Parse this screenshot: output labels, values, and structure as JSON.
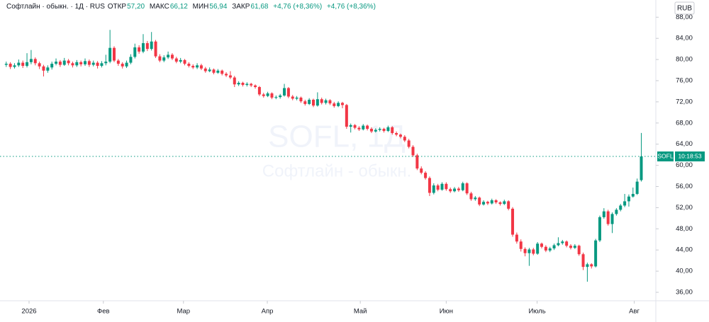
{
  "header": {
    "symbol": "Софтлайн · обыкн. · 1Д · RUS",
    "open_label": "ОТКР",
    "open": "57,20",
    "high_label": "МАКС",
    "high": "66,12",
    "low_label": "МИН",
    "low": "56,94",
    "close_label": "ЗАКР",
    "close": "61,68",
    "change": "+4,76 (+8,36%)",
    "change_2": "+4,76 (+8,36%)",
    "currency": "RUB"
  },
  "watermark": {
    "ticker": "SOFL, 1Д",
    "name": "Софтлайн - обыкн."
  },
  "price_tag": {
    "ticker": "SOFL",
    "time": "10:18:53"
  },
  "chart_data": {
    "type": "candlestick",
    "up_color": "#089981",
    "down_color": "#f23645",
    "grid": false,
    "xlim": [
      -1.5,
      156.5
    ],
    "ylim": [
      34.4,
      91.25
    ],
    "xticks": [
      {
        "value": 5.5,
        "label": "2026"
      },
      {
        "value": 23.4,
        "label": "Фев"
      },
      {
        "value": 42.7,
        "label": "Мар"
      },
      {
        "value": 62.9,
        "label": "Апр"
      },
      {
        "value": 85.3,
        "label": "Май"
      },
      {
        "value": 106,
        "label": "Июн"
      },
      {
        "value": 127.9,
        "label": "Июль"
      },
      {
        "value": 151.3,
        "label": "Авг"
      }
    ],
    "yticks": [
      {
        "value": 36,
        "label": "36,00"
      },
      {
        "value": 40,
        "label": "40,00"
      },
      {
        "value": 44,
        "label": "44,00"
      },
      {
        "value": 48,
        "label": "48,00"
      },
      {
        "value": 52,
        "label": "52,00"
      },
      {
        "value": 56,
        "label": "56,00"
      },
      {
        "value": 60,
        "label": "60,00"
      },
      {
        "value": 64,
        "label": "64,00"
      },
      {
        "value": 68,
        "label": "68,00"
      },
      {
        "value": 72,
        "label": "72,00"
      },
      {
        "value": 76,
        "label": "76,00"
      },
      {
        "value": 80,
        "label": "80,00"
      },
      {
        "value": 84,
        "label": "84,00"
      },
      {
        "value": 88,
        "label": "88,00"
      }
    ],
    "ohlc": [
      [
        79.0,
        79.6,
        78.6,
        79.2
      ],
      [
        79.2,
        79.5,
        78.2,
        78.6
      ],
      [
        78.6,
        79.3,
        78.3,
        78.9
      ],
      [
        78.9,
        80.0,
        78.6,
        79.4
      ],
      [
        79.4,
        79.8,
        78.4,
        78.8
      ],
      [
        78.8,
        81.2,
        78.5,
        79.5
      ],
      [
        79.5,
        81.8,
        79.1,
        80.1
      ],
      [
        80.1,
        80.4,
        78.9,
        79.3
      ],
      [
        79.3,
        79.6,
        78.2,
        78.7
      ],
      [
        78.7,
        79.0,
        76.8,
        77.9
      ],
      [
        77.9,
        78.9,
        77.5,
        78.5
      ],
      [
        78.5,
        79.6,
        78.1,
        79.2
      ],
      [
        79.2,
        80.2,
        78.9,
        79.6
      ],
      [
        79.6,
        79.9,
        78.6,
        79.0
      ],
      [
        79.0,
        80.3,
        78.8,
        79.8
      ],
      [
        79.8,
        80.1,
        78.9,
        79.3
      ],
      [
        79.3,
        79.6,
        78.5,
        78.9
      ],
      [
        78.9,
        79.9,
        78.6,
        79.5
      ],
      [
        79.5,
        79.8,
        78.7,
        79.1
      ],
      [
        79.1,
        80.2,
        78.8,
        79.7
      ],
      [
        79.7,
        80.0,
        78.6,
        79.0
      ],
      [
        79.0,
        79.8,
        78.7,
        79.4
      ],
      [
        79.4,
        79.7,
        78.3,
        78.8
      ],
      [
        78.8,
        79.7,
        78.5,
        79.3
      ],
      [
        79.3,
        80.9,
        78.9,
        79.6
      ],
      [
        79.6,
        85.6,
        79.3,
        82.2
      ],
      [
        82.2,
        82.5,
        79.5,
        79.8
      ],
      [
        79.8,
        80.1,
        78.8,
        79.2
      ],
      [
        79.2,
        79.5,
        78.3,
        78.7
      ],
      [
        78.7,
        79.8,
        78.4,
        79.4
      ],
      [
        79.4,
        81.0,
        79.1,
        80.5
      ],
      [
        80.5,
        83.0,
        80.2,
        82.3
      ],
      [
        82.3,
        82.7,
        81.1,
        81.5
      ],
      [
        81.5,
        84.8,
        81.2,
        83.1
      ],
      [
        83.1,
        83.5,
        81.6,
        82.0
      ],
      [
        82.0,
        85.2,
        81.7,
        83.4
      ],
      [
        83.4,
        83.7,
        80.3,
        80.6
      ],
      [
        80.6,
        81.0,
        79.5,
        79.8
      ],
      [
        79.8,
        80.8,
        79.5,
        80.4
      ],
      [
        80.4,
        81.5,
        80.1,
        80.9
      ],
      [
        80.9,
        81.2,
        79.9,
        80.2
      ],
      [
        80.2,
        80.5,
        79.3,
        79.6
      ],
      [
        79.6,
        80.3,
        79.3,
        79.9
      ],
      [
        79.9,
        80.1,
        78.9,
        79.2
      ],
      [
        79.2,
        79.5,
        78.5,
        78.8
      ],
      [
        78.8,
        79.1,
        78.2,
        78.5
      ],
      [
        78.5,
        79.3,
        78.2,
        78.9
      ],
      [
        78.9,
        79.2,
        78.0,
        78.3
      ],
      [
        78.3,
        78.6,
        77.5,
        77.8
      ],
      [
        77.8,
        78.5,
        77.6,
        78.1
      ],
      [
        78.1,
        78.3,
        77.2,
        77.5
      ],
      [
        77.5,
        78.2,
        77.3,
        77.9
      ],
      [
        77.9,
        78.1,
        77.0,
        77.3
      ],
      [
        77.3,
        77.6,
        76.7,
        77.0
      ],
      [
        77.0,
        77.8,
        76.3,
        76.6
      ],
      [
        76.6,
        76.9,
        74.8,
        75.3
      ],
      [
        75.3,
        75.9,
        75.0,
        75.6
      ],
      [
        75.6,
        75.8,
        74.9,
        75.2
      ],
      [
        75.2,
        75.7,
        74.9,
        75.4
      ],
      [
        75.4,
        75.6,
        74.8,
        75.1
      ],
      [
        75.1,
        75.3,
        74.5,
        74.8
      ],
      [
        74.8,
        75.0,
        73.1,
        73.4
      ],
      [
        73.4,
        73.7,
        72.8,
        73.1
      ],
      [
        73.1,
        73.9,
        72.9,
        73.6
      ],
      [
        73.6,
        73.8,
        72.5,
        72.8
      ],
      [
        72.8,
        73.2,
        72.5,
        72.9
      ],
      [
        72.9,
        73.5,
        72.6,
        73.2
      ],
      [
        73.2,
        75.4,
        73.0,
        74.6
      ],
      [
        74.6,
        74.8,
        72.7,
        73.0
      ],
      [
        73.0,
        73.3,
        72.3,
        72.6
      ],
      [
        72.6,
        73.1,
        72.3,
        72.8
      ],
      [
        72.8,
        73.0,
        71.8,
        72.1
      ],
      [
        72.1,
        72.4,
        71.3,
        71.6
      ],
      [
        71.6,
        72.7,
        71.4,
        72.4
      ],
      [
        72.4,
        72.6,
        71.0,
        71.3
      ],
      [
        71.3,
        73.8,
        71.1,
        72.5
      ],
      [
        72.5,
        72.8,
        71.5,
        71.8
      ],
      [
        71.8,
        72.6,
        71.5,
        72.3
      ],
      [
        72.3,
        72.5,
        71.4,
        71.7
      ],
      [
        71.7,
        72.0,
        70.9,
        71.2
      ],
      [
        71.2,
        72.1,
        71.0,
        71.8
      ],
      [
        71.8,
        72.0,
        70.8,
        71.4
      ],
      [
        71.4,
        71.6,
        66.9,
        67.3
      ],
      [
        67.3,
        67.9,
        66.2,
        67.6
      ],
      [
        67.6,
        67.8,
        66.8,
        67.1
      ],
      [
        67.1,
        67.4,
        66.5,
        66.8
      ],
      [
        66.8,
        67.8,
        66.6,
        67.5
      ],
      [
        67.5,
        67.7,
        66.6,
        66.9
      ],
      [
        66.9,
        67.2,
        66.1,
        66.4
      ],
      [
        66.4,
        67.0,
        66.2,
        66.7
      ],
      [
        66.7,
        67.2,
        66.4,
        66.9
      ],
      [
        66.9,
        67.1,
        66.2,
        66.5
      ],
      [
        66.5,
        67.5,
        66.3,
        67.2
      ],
      [
        67.2,
        67.4,
        65.8,
        66.1
      ],
      [
        66.1,
        66.4,
        65.5,
        65.8
      ],
      [
        65.8,
        66.0,
        65.1,
        65.4
      ],
      [
        65.4,
        65.7,
        64.4,
        64.7
      ],
      [
        64.7,
        65.0,
        63.2,
        63.5
      ],
      [
        63.5,
        63.8,
        61.6,
        61.9
      ],
      [
        61.9,
        62.2,
        59.1,
        59.4
      ],
      [
        59.4,
        59.8,
        58.3,
        58.6
      ],
      [
        58.6,
        58.9,
        57.3,
        57.6
      ],
      [
        57.6,
        57.9,
        54.2,
        54.8
      ],
      [
        54.8,
        56.6,
        54.5,
        56.2
      ],
      [
        56.2,
        56.5,
        55.1,
        55.4
      ],
      [
        55.4,
        56.8,
        55.2,
        56.5
      ],
      [
        56.5,
        56.8,
        55.2,
        55.5
      ],
      [
        55.5,
        55.8,
        54.8,
        55.1
      ],
      [
        55.1,
        55.9,
        54.9,
        55.6
      ],
      [
        55.6,
        55.9,
        55.0,
        55.3
      ],
      [
        55.3,
        56.9,
        55.1,
        56.6
      ],
      [
        56.6,
        56.8,
        54.4,
        54.7
      ],
      [
        54.7,
        55.0,
        53.3,
        53.6
      ],
      [
        53.6,
        54.2,
        53.3,
        53.9
      ],
      [
        53.9,
        54.1,
        52.3,
        52.6
      ],
      [
        52.6,
        53.4,
        52.4,
        53.1
      ],
      [
        53.1,
        53.3,
        52.5,
        52.8
      ],
      [
        52.8,
        53.7,
        52.6,
        53.4
      ],
      [
        53.4,
        53.6,
        52.7,
        53.0
      ],
      [
        53.0,
        53.2,
        52.4,
        52.7
      ],
      [
        52.7,
        53.5,
        52.5,
        53.2
      ],
      [
        53.2,
        53.4,
        51.5,
        51.8
      ],
      [
        51.8,
        52.1,
        46.5,
        46.9
      ],
      [
        46.9,
        47.3,
        45.2,
        45.6
      ],
      [
        45.6,
        46.0,
        43.7,
        44.2
      ],
      [
        44.2,
        44.5,
        42.8,
        43.4
      ],
      [
        43.4,
        44.4,
        41.0,
        44.1
      ],
      [
        44.1,
        44.4,
        43.0,
        43.3
      ],
      [
        43.3,
        45.5,
        43.1,
        45.2
      ],
      [
        45.2,
        45.4,
        44.3,
        44.6
      ],
      [
        44.6,
        44.9,
        43.6,
        43.9
      ],
      [
        43.9,
        44.6,
        43.6,
        44.3
      ],
      [
        44.3,
        45.2,
        44.0,
        44.9
      ],
      [
        44.9,
        46.4,
        44.7,
        45.3
      ],
      [
        45.3,
        45.9,
        45.0,
        45.6
      ],
      [
        45.6,
        45.8,
        44.5,
        44.8
      ],
      [
        44.8,
        45.1,
        44.1,
        44.4
      ],
      [
        44.4,
        45.1,
        44.2,
        44.8
      ],
      [
        44.8,
        45.0,
        42.9,
        43.2
      ],
      [
        43.2,
        43.5,
        40.2,
        40.8
      ],
      [
        40.8,
        41.6,
        38.0,
        41.3
      ],
      [
        41.3,
        41.5,
        40.5,
        40.9
      ],
      [
        40.9,
        46.1,
        40.7,
        45.8
      ],
      [
        45.8,
        50.5,
        45.5,
        50.2
      ],
      [
        50.2,
        51.9,
        49.9,
        51.3
      ],
      [
        51.3,
        51.6,
        48.6,
        48.9
      ],
      [
        48.9,
        51.1,
        47.2,
        50.8
      ],
      [
        50.8,
        51.9,
        50.5,
        51.6
      ],
      [
        51.6,
        52.7,
        51.3,
        52.4
      ],
      [
        52.4,
        54.6,
        52.1,
        53.2
      ],
      [
        53.2,
        54.5,
        52.2,
        54.1
      ],
      [
        54.1,
        55.8,
        53.9,
        54.6
      ],
      [
        54.6,
        57.5,
        54.4,
        56.92
      ],
      [
        57.2,
        66.12,
        56.94,
        61.68
      ]
    ]
  }
}
